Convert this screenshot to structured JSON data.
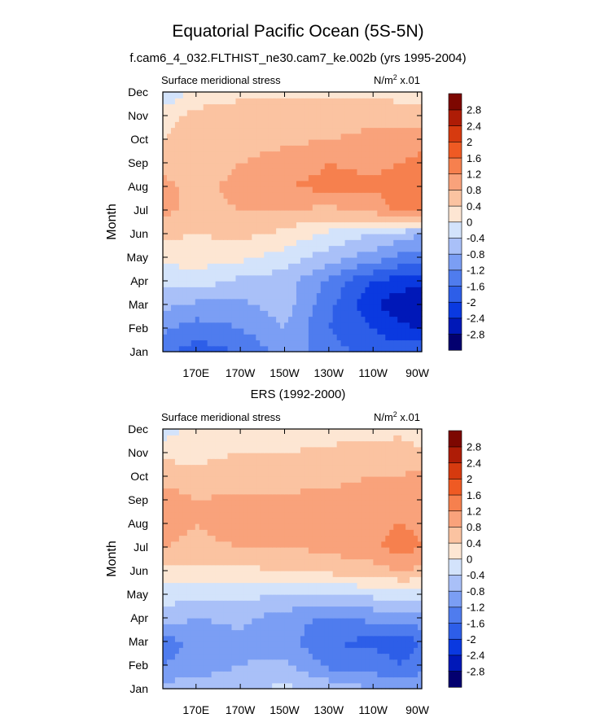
{
  "figure": {
    "title": "Equatorial Pacific Ocean (5S-5N)"
  },
  "chart_data": [
    {
      "type": "heatmap",
      "title": "f.cam6_4_032.FLTHIST_ne30.cam7_ke.002b (yrs 1995-2004)",
      "left_string": "Surface meridional stress",
      "right_string_main": "N/m",
      "right_string_sup": "2",
      "right_string_tail": " x.01",
      "xlabel": "",
      "ylabel": "Month",
      "x_ticks": [
        "170E",
        "170W",
        "150W",
        "130W",
        "110W",
        "90W"
      ],
      "x_tick_lon": [
        170,
        190,
        210,
        230,
        250,
        270
      ],
      "xlim_lon": [
        155,
        272
      ],
      "y_ticks": [
        "Jan",
        "Feb",
        "Mar",
        "Apr",
        "May",
        "Jun",
        "Jul",
        "Aug",
        "Sep",
        "Oct",
        "Nov",
        "Dec"
      ],
      "colorbar": {
        "labels": [
          "-2.8",
          "-2.4",
          "-2",
          "-1.6",
          "-1.2",
          "-0.8",
          "-0.4",
          "0",
          "0.4",
          "0.8",
          "1.2",
          "1.6",
          "2",
          "2.4",
          "2.8"
        ]
      },
      "months": [
        1,
        2,
        3,
        4,
        5,
        6,
        7,
        8,
        9,
        10,
        11,
        12
      ],
      "lon": [
        155,
        170,
        190,
        210,
        230,
        250,
        262,
        272
      ],
      "values": [
        [
          -1.5,
          -1.8,
          -1.6,
          -1.0,
          -1.4,
          -1.8,
          -1.8,
          -1.7
        ],
        [
          -1.1,
          -1.4,
          -1.2,
          -0.8,
          -1.6,
          -2.0,
          -2.3,
          -2.4
        ],
        [
          -0.7,
          -0.9,
          -0.9,
          -0.6,
          -1.5,
          -2.3,
          -2.7,
          -2.8
        ],
        [
          -0.3,
          -0.2,
          -0.5,
          -0.6,
          -1.3,
          -2.0,
          -2.2,
          -2.2
        ],
        [
          0.1,
          0.2,
          0.1,
          -0.2,
          -0.6,
          -1.0,
          -1.3,
          -1.4
        ],
        [
          0.5,
          0.4,
          0.5,
          0.3,
          -0.1,
          -0.4,
          -0.6,
          -0.8
        ],
        [
          0.9,
          0.7,
          0.8,
          0.8,
          0.7,
          0.9,
          1.3,
          1.4
        ],
        [
          0.9,
          0.7,
          0.9,
          1.2,
          1.3,
          1.3,
          1.4,
          1.3
        ],
        [
          0.7,
          0.6,
          0.8,
          1.0,
          1.2,
          1.1,
          1.2,
          1.3
        ],
        [
          0.4,
          0.5,
          0.6,
          0.7,
          0.8,
          0.9,
          0.9,
          1.1
        ],
        [
          0.3,
          0.5,
          0.6,
          0.6,
          0.6,
          0.7,
          0.7,
          0.6
        ],
        [
          -0.5,
          0.2,
          0.3,
          0.3,
          0.3,
          0.3,
          0.2,
          0.1
        ]
      ]
    },
    {
      "type": "heatmap",
      "title": "ERS (1992-2000)",
      "left_string": "Surface meridional stress",
      "right_string_main": "N/m",
      "right_string_sup": "2",
      "right_string_tail": " x.01",
      "xlabel": "",
      "ylabel": "Month",
      "x_ticks": [
        "170E",
        "170W",
        "150W",
        "130W",
        "110W",
        "90W"
      ],
      "x_tick_lon": [
        170,
        190,
        210,
        230,
        250,
        270
      ],
      "xlim_lon": [
        155,
        272
      ],
      "y_ticks": [
        "Jan",
        "Feb",
        "Mar",
        "Apr",
        "May",
        "Jun",
        "Jul",
        "Aug",
        "Sep",
        "Oct",
        "Nov",
        "Dec"
      ],
      "colorbar": {
        "labels": [
          "-2.8",
          "-2.4",
          "-2",
          "-1.6",
          "-1.2",
          "-0.8",
          "-0.4",
          "0",
          "0.4",
          "0.8",
          "1.2",
          "1.6",
          "2",
          "2.4",
          "2.8"
        ]
      },
      "months": [
        1,
        2,
        3,
        4,
        5,
        6,
        7,
        8,
        9,
        10,
        11,
        12
      ],
      "lon": [
        155,
        170,
        190,
        210,
        230,
        250,
        262,
        272
      ],
      "values": [
        [
          -0.6,
          -0.6,
          -0.5,
          -0.3,
          -0.5,
          -0.8,
          -0.9,
          -0.8
        ],
        [
          -1.2,
          -1.0,
          -0.8,
          -0.7,
          -1.3,
          -1.4,
          -1.6,
          -1.4
        ],
        [
          -1.4,
          -1.1,
          -0.9,
          -1.0,
          -1.6,
          -1.7,
          -1.8,
          -1.6
        ],
        [
          -0.6,
          -0.8,
          -0.7,
          -1.0,
          -1.3,
          -1.1,
          -1.1,
          -0.9
        ],
        [
          -0.2,
          -0.3,
          -0.3,
          -0.4,
          -0.4,
          -0.3,
          -0.2,
          -0.2
        ],
        [
          0.3,
          0.3,
          0.3,
          0.4,
          0.5,
          0.6,
          0.8,
          0.7
        ],
        [
          0.8,
          0.7,
          0.8,
          0.8,
          0.9,
          1.1,
          1.4,
          1.2
        ],
        [
          1.0,
          0.8,
          1.0,
          0.9,
          1.0,
          1.1,
          1.2,
          1.1
        ],
        [
          1.1,
          0.8,
          0.9,
          0.9,
          0.9,
          1.0,
          0.9,
          1.2
        ],
        [
          0.6,
          0.5,
          0.6,
          0.6,
          0.7,
          0.8,
          0.8,
          0.9
        ],
        [
          0.3,
          0.3,
          0.4,
          0.4,
          0.5,
          0.6,
          0.6,
          0.5
        ],
        [
          -0.2,
          0.1,
          0.1,
          0.1,
          0.2,
          0.2,
          0.3,
          0.1
        ]
      ]
    }
  ],
  "palette": [
    "#03006f",
    "#0018b8",
    "#0a39e0",
    "#2d5ee8",
    "#4f7cee",
    "#7b9ef4",
    "#a9c0f8",
    "#d3e3fb",
    "#fde6d3",
    "#fbc3a1",
    "#f9a27b",
    "#f6804e",
    "#ef5a23",
    "#d63a0f",
    "#ae1c06",
    "#7d0701"
  ]
}
